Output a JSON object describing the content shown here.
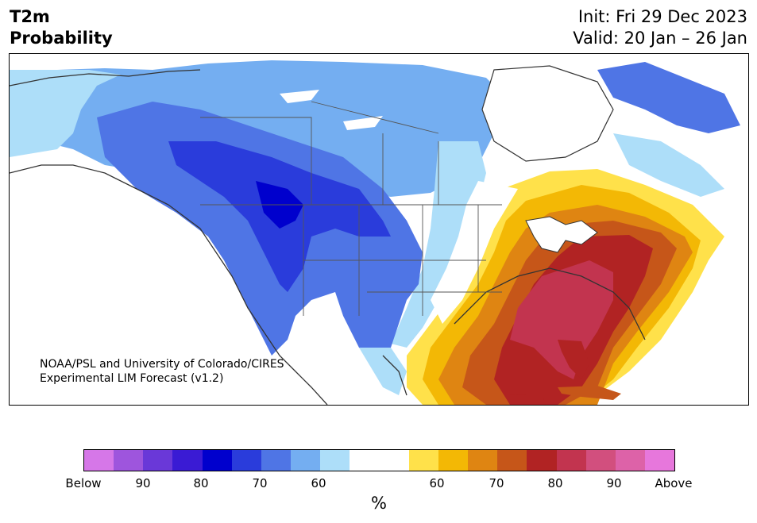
{
  "title": {
    "line1": "T2m",
    "line2": "Probability"
  },
  "info": {
    "init": "Init: Fri 29 Dec 2023",
    "valid": "Valid: 20 Jan – 26 Jan"
  },
  "credit": {
    "line1": "NOAA/PSL and University of Colorado/CIRES",
    "line2": "Experimental LIM Forecast (v1.2)"
  },
  "colorbar": {
    "colors": [
      "#d677e8",
      "#9e55dd",
      "#6a38d8",
      "#3a1bd4",
      "#0000cd",
      "#2a3cdb",
      "#4f75e5",
      "#74aef1",
      "#addef9",
      "#ffffff",
      "#ffffff",
      "#ffe14a",
      "#f3b805",
      "#df8512",
      "#c65619",
      "#b12323",
      "#c2344f",
      "#d24f7e",
      "#dd62a8",
      "#e777dc"
    ],
    "labels": [
      "Below",
      "90",
      "80",
      "70",
      "60",
      "60",
      "70",
      "80",
      "90",
      "Above"
    ],
    "unit": "%"
  },
  "palette": {
    "below_light": "#addef9",
    "below_mid": "#74aef1",
    "below_deep": "#4f75e5",
    "below_strong": "#2a3cdb",
    "below_max": "#0000cd",
    "above_light": "#ffe14a",
    "above_mid": "#f3b805",
    "above_deep": "#df8512",
    "above_strong": "#c65619",
    "above_red": "#b12323",
    "above_max": "#c2344f"
  }
}
